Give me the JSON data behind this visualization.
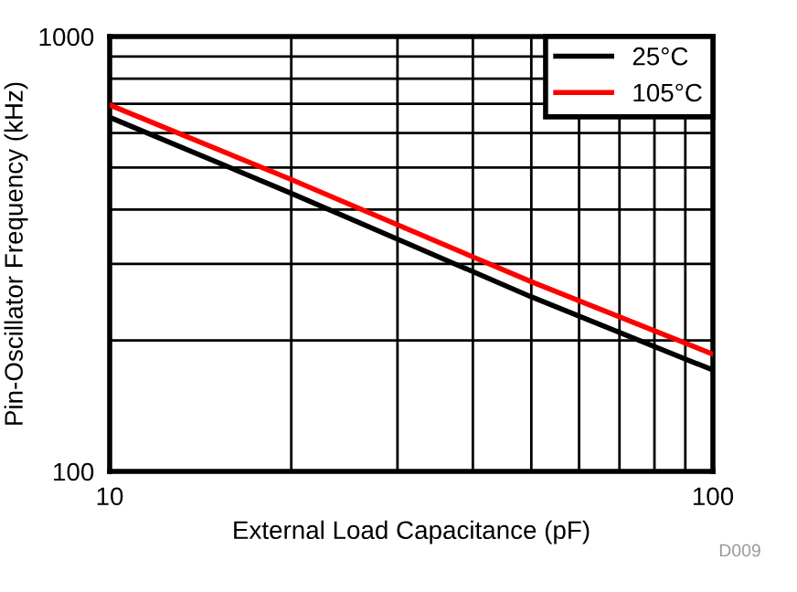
{
  "chart_data": {
    "type": "line",
    "xlabel": "External Load Capacitance (pF)",
    "ylabel": "Pin-Oscillator Frequency (kHz)",
    "log": "xy",
    "xlim": [
      10,
      100
    ],
    "ylim": [
      100,
      1000
    ],
    "xticks": [
      10,
      {
        "value": 20,
        "label": null
      },
      {
        "value": 30,
        "label": null
      },
      {
        "value": 40,
        "label": null
      },
      {
        "value": 50,
        "label": null
      },
      {
        "value": 60,
        "label": null
      },
      {
        "value": 70,
        "label": null
      },
      {
        "value": 80,
        "label": null
      },
      {
        "value": 90,
        "label": null
      },
      100
    ],
    "yticks": [
      100,
      {
        "value": 200,
        "label": null
      },
      {
        "value": 300,
        "label": null
      },
      {
        "value": 400,
        "label": null
      },
      {
        "value": 500,
        "label": null
      },
      {
        "value": 600,
        "label": null
      },
      {
        "value": 700,
        "label": null
      },
      {
        "value": 800,
        "label": null
      },
      {
        "value": 900,
        "label": null
      },
      1000
    ],
    "grid": true,
    "legend": "top right",
    "annotations": [
      "D009"
    ],
    "x": [
      10,
      20,
      50,
      100
    ],
    "series": [
      {
        "name": "25°C",
        "color": "#000000",
        "values": [
          652,
          436,
          252,
          171
        ]
      },
      {
        "name": "105°C",
        "color": "#ff0000",
        "values": [
          696,
          469,
          273,
          186
        ]
      }
    ]
  }
}
